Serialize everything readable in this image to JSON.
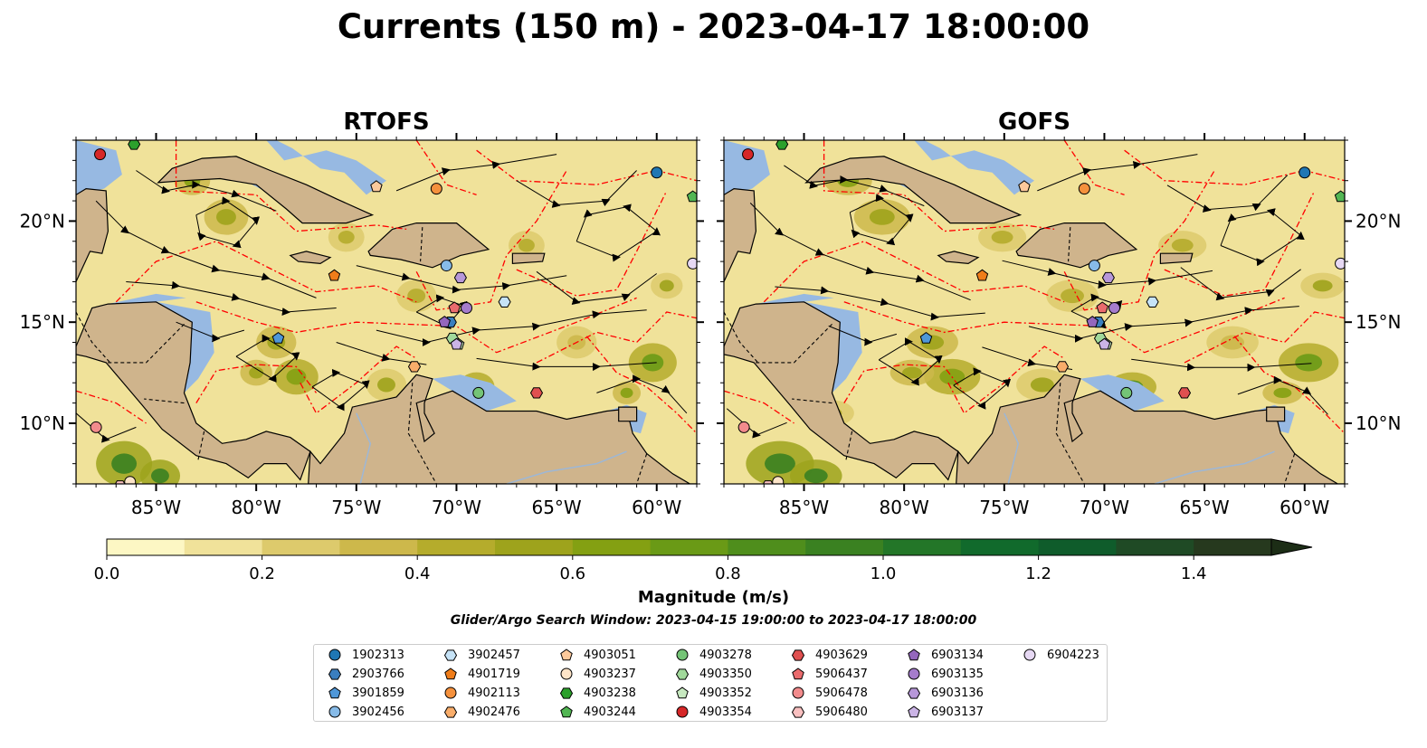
{
  "title": "Currents (150 m) - 2023-04-17 18:00:00",
  "panels": [
    {
      "title": "RTOFS"
    },
    {
      "title": "GOFS"
    }
  ],
  "map": {
    "lon_range": [
      -89,
      -58
    ],
    "lat_range": [
      7,
      24
    ],
    "lon_ticks": [
      "85°W",
      "80°W",
      "75°W",
      "70°W",
      "65°W",
      "60°W"
    ],
    "lat_ticks": [
      "20°N",
      "15°N",
      "10°N"
    ],
    "colors": {
      "land": "#cfb48c",
      "shelf": "#97b9e2",
      "eez": "#ff0000",
      "streamline": "#000000"
    }
  },
  "colorbar": {
    "label": "Magnitude (m/s)",
    "min": 0.0,
    "max": 1.5,
    "extend": "max",
    "ticks": [
      "0.0",
      "0.2",
      "0.4",
      "0.6",
      "0.8",
      "1.0",
      "1.2",
      "1.4"
    ],
    "colors": [
      "#fdf7c4",
      "#f0e29a",
      "#ddca6c",
      "#cdb84b",
      "#b5ac2c",
      "#9ea31c",
      "#84a012",
      "#6a9a16",
      "#4f8e1c",
      "#3a8121",
      "#237628",
      "#116a2c",
      "#0f5c2b",
      "#1f4a25",
      "#26391e",
      "#1c2d16"
    ]
  },
  "search_window": "Glider/Argo Search Window: 2023-04-15 19:00:00 to 2023-04-17 18:00:00",
  "floats": [
    {
      "id": "1902313",
      "marker": "circle",
      "color": "#1f77b4",
      "lon": -60.0,
      "lat": 22.4
    },
    {
      "id": "2903766",
      "marker": "hexagon",
      "color": "#3a7ebf",
      "lon": -70.3,
      "lat": 15.0
    },
    {
      "id": "3901859",
      "marker": "pentagon",
      "color": "#4f97d8",
      "lon": -78.9,
      "lat": 14.2
    },
    {
      "id": "3902456",
      "marker": "circle",
      "color": "#87bbe8",
      "lon": -70.5,
      "lat": 17.8
    },
    {
      "id": "3902457",
      "marker": "hexagon",
      "color": "#c6e3f7",
      "lon": -67.6,
      "lat": 16.0
    },
    {
      "id": "4901719",
      "marker": "pentagon",
      "color": "#f07d1a",
      "lon": -76.1,
      "lat": 17.3
    },
    {
      "id": "4902113",
      "marker": "circle",
      "color": "#f5913d",
      "lon": -71.0,
      "lat": 21.6
    },
    {
      "id": "4902476",
      "marker": "hexagon",
      "color": "#f9ad6a",
      "lon": -72.1,
      "lat": 12.8
    },
    {
      "id": "4903051",
      "marker": "pentagon",
      "color": "#fcc99b",
      "lon": -74.0,
      "lat": 21.7
    },
    {
      "id": "4903237",
      "marker": "circle",
      "color": "#fde4c8",
      "lon": -86.3,
      "lat": 7.1
    },
    {
      "id": "4903238",
      "marker": "hexagon",
      "color": "#2ca02c",
      "lon": -86.1,
      "lat": 23.8
    },
    {
      "id": "4903244",
      "marker": "pentagon",
      "color": "#52b653",
      "lon": -58.2,
      "lat": 21.2
    },
    {
      "id": "4903278",
      "marker": "circle",
      "color": "#74c476",
      "lon": -68.9,
      "lat": 11.5
    },
    {
      "id": "4903350",
      "marker": "hexagon",
      "color": "#a1d99b",
      "lon": -70.2,
      "lat": 14.2
    },
    {
      "id": "4903352",
      "marker": "pentagon",
      "color": "#c7e9c0",
      "lon": -69.9,
      "lat": 13.9
    },
    {
      "id": "4903354",
      "marker": "circle",
      "color": "#d62728",
      "lon": -87.8,
      "lat": 23.3
    },
    {
      "id": "4903629",
      "marker": "hexagon",
      "color": "#e05050",
      "lon": -66.0,
      "lat": 11.5
    },
    {
      "id": "5906437",
      "marker": "pentagon",
      "color": "#ea6b6d",
      "lon": -70.1,
      "lat": 15.7
    },
    {
      "id": "5906478",
      "marker": "circle",
      "color": "#f28b8c",
      "lon": -88.0,
      "lat": 9.8
    },
    {
      "id": "5906480",
      "marker": "hexagon",
      "color": "#f9c0c0",
      "lon": -86.8,
      "lat": 6.9
    },
    {
      "id": "6903134",
      "marker": "pentagon",
      "color": "#9467bd",
      "lon": -70.6,
      "lat": 15.0
    },
    {
      "id": "6903135",
      "marker": "circle",
      "color": "#a57ccc",
      "lon": -69.5,
      "lat": 15.7
    },
    {
      "id": "6903136",
      "marker": "hexagon",
      "color": "#b797d9",
      "lon": -69.8,
      "lat": 17.2
    },
    {
      "id": "6903137",
      "marker": "pentagon",
      "color": "#cbb4e6",
      "lon": -70.0,
      "lat": 13.9
    },
    {
      "id": "6904223",
      "marker": "circle",
      "color": "#e6d8f3",
      "lon": -58.2,
      "lat": 17.9
    }
  ]
}
